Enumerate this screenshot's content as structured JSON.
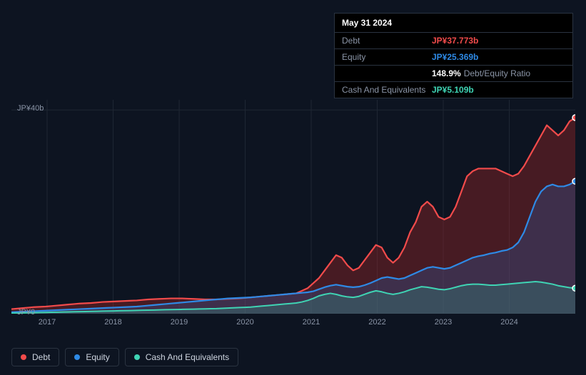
{
  "chart": {
    "type": "area",
    "background_color": "#0d1421",
    "grid_color": "#1e2633",
    "axis_label_color": "#8a94a6",
    "axis_fontsize": 11,
    "ylim": [
      0,
      42
    ],
    "y_ticks": [
      {
        "value": 40,
        "label": "JP¥40b"
      },
      {
        "value": 0,
        "label": "JP¥0"
      }
    ],
    "x_years": [
      "2017",
      "2018",
      "2019",
      "2020",
      "2021",
      "2022",
      "2023",
      "2024"
    ],
    "series": {
      "debt": {
        "label": "Debt",
        "color": "#f24b4b",
        "fill": "rgba(180,40,40,0.35)",
        "stroke_width": 2.2,
        "data": [
          0.9,
          1.0,
          1.1,
          1.2,
          1.3,
          1.35,
          1.4,
          1.5,
          1.6,
          1.7,
          1.8,
          1.9,
          2.0,
          2.05,
          2.1,
          2.2,
          2.3,
          2.35,
          2.4,
          2.45,
          2.5,
          2.55,
          2.6,
          2.7,
          2.8,
          2.85,
          2.9,
          2.95,
          3.0,
          3.0,
          3.0,
          2.95,
          2.9,
          2.85,
          2.8,
          2.8,
          2.8,
          2.85,
          2.9,
          2.95,
          3.0,
          3.1,
          3.2,
          3.3,
          3.4,
          3.5,
          3.6,
          3.7,
          3.8,
          3.9,
          4.0,
          4.5,
          5.0,
          6.0,
          7.0,
          8.5,
          10.0,
          11.5,
          11.0,
          9.5,
          8.5,
          9.0,
          10.5,
          12.0,
          13.5,
          13.0,
          11.0,
          10.0,
          11.0,
          13.0,
          16.0,
          18.0,
          21.0,
          22.0,
          21.0,
          19.0,
          18.5,
          19.0,
          21.0,
          24.0,
          27.0,
          28.0,
          28.5,
          28.5,
          28.5,
          28.5,
          28.0,
          27.5,
          27.0,
          27.5,
          29.0,
          31.0,
          33.0,
          35.0,
          37.0,
          36.0,
          35.0,
          36.0,
          37.77,
          38.5
        ]
      },
      "equity": {
        "label": "Equity",
        "color": "#2e8ae6",
        "fill": "rgba(40,100,180,0.28)",
        "stroke_width": 2.2,
        "data": [
          0.3,
          0.35,
          0.4,
          0.45,
          0.5,
          0.55,
          0.6,
          0.65,
          0.7,
          0.75,
          0.8,
          0.85,
          0.9,
          0.95,
          1.0,
          1.05,
          1.1,
          1.15,
          1.2,
          1.25,
          1.3,
          1.35,
          1.4,
          1.5,
          1.6,
          1.7,
          1.8,
          1.9,
          2.0,
          2.1,
          2.2,
          2.3,
          2.4,
          2.5,
          2.6,
          2.7,
          2.8,
          2.9,
          3.0,
          3.05,
          3.1,
          3.15,
          3.2,
          3.3,
          3.4,
          3.5,
          3.6,
          3.7,
          3.8,
          3.9,
          4.0,
          4.1,
          4.2,
          4.4,
          4.8,
          5.2,
          5.5,
          5.7,
          5.5,
          5.3,
          5.2,
          5.3,
          5.6,
          6.0,
          6.5,
          7.0,
          7.2,
          7.0,
          6.8,
          7.0,
          7.5,
          8.0,
          8.5,
          9.0,
          9.2,
          9.0,
          8.8,
          9.0,
          9.5,
          10.0,
          10.5,
          11.0,
          11.3,
          11.5,
          11.8,
          12.0,
          12.3,
          12.5,
          13.0,
          14.0,
          16.0,
          19.0,
          22.0,
          24.0,
          25.0,
          25.37,
          25.0,
          25.0,
          25.37,
          26.0
        ]
      },
      "cash": {
        "label": "Cash And Equivalents",
        "color": "#3fd4b4",
        "fill": "rgba(50,160,140,0.28)",
        "stroke_width": 2.0,
        "data": [
          0.1,
          0.12,
          0.15,
          0.18,
          0.2,
          0.22,
          0.25,
          0.28,
          0.3,
          0.33,
          0.35,
          0.38,
          0.4,
          0.42,
          0.45,
          0.48,
          0.5,
          0.52,
          0.55,
          0.58,
          0.6,
          0.62,
          0.65,
          0.68,
          0.7,
          0.72,
          0.75,
          0.78,
          0.8,
          0.82,
          0.85,
          0.88,
          0.9,
          0.92,
          0.95,
          0.98,
          1.0,
          1.05,
          1.1,
          1.15,
          1.2,
          1.25,
          1.3,
          1.4,
          1.5,
          1.6,
          1.7,
          1.8,
          1.9,
          2.0,
          2.1,
          2.3,
          2.6,
          3.0,
          3.5,
          3.8,
          4.0,
          3.8,
          3.5,
          3.3,
          3.2,
          3.4,
          3.8,
          4.2,
          4.5,
          4.3,
          4.0,
          3.8,
          4.0,
          4.3,
          4.7,
          5.0,
          5.3,
          5.2,
          5.0,
          4.8,
          4.7,
          4.9,
          5.2,
          5.5,
          5.7,
          5.8,
          5.8,
          5.7,
          5.6,
          5.6,
          5.7,
          5.8,
          5.9,
          6.0,
          6.1,
          6.2,
          6.3,
          6.2,
          6.0,
          5.8,
          5.5,
          5.3,
          5.11,
          5.0
        ]
      }
    }
  },
  "tooltip": {
    "date": "May 31 2024",
    "rows": [
      {
        "label": "Debt",
        "value": "JP¥37.773b",
        "color": "#f24b4b"
      },
      {
        "label": "Equity",
        "value": "JP¥25.369b",
        "color": "#2e8ae6"
      }
    ],
    "ratio": {
      "pct": "148.9%",
      "text": "Debt/Equity Ratio"
    },
    "cash": {
      "label": "Cash And Equivalents",
      "value": "JP¥5.109b",
      "color": "#3fd4b4"
    }
  },
  "legend": [
    {
      "key": "debt",
      "label": "Debt",
      "color": "#f24b4b"
    },
    {
      "key": "equity",
      "label": "Equity",
      "color": "#2e8ae6"
    },
    {
      "key": "cash",
      "label": "Cash And Equivalents",
      "color": "#3fd4b4"
    }
  ]
}
